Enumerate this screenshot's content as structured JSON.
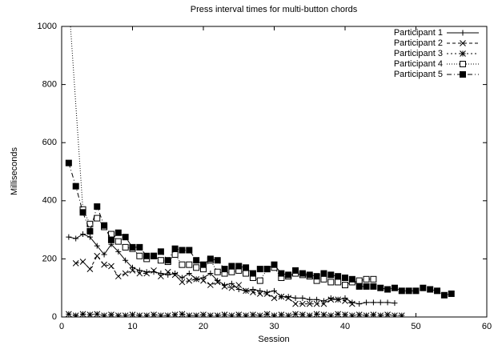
{
  "chart_data": {
    "type": "line",
    "title": "Press interval times for multi-button chords",
    "xlabel": "Session",
    "ylabel": "Milliseconds",
    "xlim": [
      0,
      60
    ],
    "xticks": [
      0,
      10,
      20,
      30,
      40,
      50,
      60
    ],
    "ylim": [
      0,
      1000
    ],
    "yticks": [
      0,
      200,
      400,
      600,
      800,
      1000
    ],
    "legend": "top-right",
    "series": [
      {
        "name": "Participant 1",
        "color": "#000000",
        "marker": "plus",
        "dash": "solid",
        "x": [
          1,
          2,
          3,
          4,
          5,
          6,
          7,
          8,
          9,
          10,
          11,
          12,
          13,
          14,
          15,
          16,
          17,
          18,
          19,
          20,
          21,
          22,
          23,
          24,
          25,
          26,
          27,
          28,
          29,
          30,
          31,
          32,
          33,
          34,
          35,
          36,
          37,
          38,
          39,
          40,
          41,
          42,
          43,
          44,
          45,
          46,
          47
        ],
        "values": [
          275,
          270,
          285,
          275,
          245,
          215,
          250,
          225,
          195,
          170,
          160,
          155,
          155,
          150,
          145,
          150,
          135,
          150,
          130,
          135,
          150,
          125,
          110,
          115,
          95,
          90,
          95,
          90,
          85,
          90,
          70,
          70,
          65,
          65,
          60,
          60,
          55,
          65,
          60,
          65,
          50,
          45,
          50,
          50,
          50,
          50,
          48
        ]
      },
      {
        "name": "Participant 2",
        "color": "#000000",
        "marker": "cross",
        "dash": "dashed",
        "x": [
          2,
          3,
          4,
          5,
          6,
          7,
          8,
          9,
          10,
          11,
          12,
          13,
          14,
          15,
          16,
          17,
          18,
          19,
          20,
          21,
          22,
          23,
          24,
          25,
          26,
          27,
          28,
          29,
          30,
          31,
          32,
          33,
          34,
          35,
          36,
          37,
          38,
          39,
          40,
          41
        ],
        "values": [
          185,
          190,
          165,
          210,
          180,
          175,
          140,
          150,
          160,
          150,
          150,
          160,
          140,
          155,
          145,
          120,
          125,
          130,
          125,
          110,
          120,
          105,
          100,
          110,
          90,
          85,
          80,
          80,
          65,
          70,
          65,
          45,
          45,
          45,
          45,
          45,
          60,
          60,
          55,
          45
        ]
      },
      {
        "name": "Participant 3",
        "color": "#000000",
        "marker": "star",
        "dash": "dotted",
        "x": [
          1,
          2,
          3,
          4,
          5,
          6,
          7,
          8,
          9,
          10,
          11,
          12,
          13,
          14,
          15,
          16,
          17,
          18,
          19,
          20,
          21,
          22,
          23,
          24,
          25,
          26,
          27,
          28,
          29,
          30,
          31,
          32,
          33,
          34,
          35,
          36,
          37,
          38,
          39,
          40,
          41,
          42,
          43,
          44,
          45,
          46,
          47,
          48
        ],
        "values": [
          10,
          5,
          10,
          8,
          10,
          5,
          8,
          5,
          5,
          8,
          5,
          5,
          8,
          5,
          5,
          8,
          10,
          5,
          5,
          8,
          5,
          5,
          8,
          5,
          8,
          5,
          8,
          5,
          10,
          5,
          8,
          5,
          10,
          8,
          5,
          10,
          8,
          5,
          10,
          8,
          5,
          8,
          5,
          8,
          5,
          8,
          5,
          5
        ]
      },
      {
        "name": "Participant 4",
        "color": "#000000",
        "marker": "square",
        "dash": "fine-dotted",
        "x": [
          1,
          3,
          4,
          5,
          6,
          7,
          8,
          9,
          10,
          11,
          12,
          13,
          14,
          15,
          16,
          17,
          18,
          19,
          20,
          21,
          22,
          23,
          24,
          25,
          26,
          27,
          28,
          29,
          30,
          31,
          32,
          33,
          34,
          35,
          36,
          37,
          38,
          39,
          40,
          41,
          42,
          43,
          44
        ],
        "values": [
          1090,
          370,
          320,
          340,
          310,
          285,
          260,
          240,
          235,
          210,
          200,
          210,
          195,
          190,
          215,
          180,
          180,
          170,
          165,
          195,
          155,
          150,
          155,
          160,
          150,
          135,
          125,
          165,
          170,
          135,
          140,
          150,
          145,
          140,
          125,
          130,
          120,
          120,
          110,
          120,
          125,
          130,
          130
        ]
      },
      {
        "name": "Participant 5",
        "color": "#000000",
        "marker": "filled-square",
        "dash": "dash-dot",
        "x": [
          1,
          2,
          3,
          4,
          5,
          6,
          7,
          8,
          9,
          10,
          11,
          12,
          13,
          14,
          15,
          16,
          17,
          18,
          19,
          20,
          21,
          22,
          23,
          24,
          25,
          26,
          27,
          28,
          29,
          30,
          31,
          32,
          33,
          34,
          35,
          36,
          37,
          38,
          39,
          40,
          41,
          42,
          43,
          44,
          45,
          46,
          47,
          48,
          49,
          50,
          51,
          52,
          53,
          54,
          55
        ],
        "values": [
          530,
          450,
          360,
          295,
          380,
          315,
          265,
          290,
          275,
          240,
          240,
          210,
          210,
          225,
          195,
          235,
          230,
          230,
          195,
          180,
          200,
          195,
          165,
          175,
          175,
          170,
          150,
          165,
          165,
          180,
          150,
          145,
          160,
          150,
          145,
          140,
          150,
          145,
          140,
          135,
          130,
          105,
          105,
          105,
          100,
          95,
          100,
          90,
          90,
          90,
          100,
          95,
          90,
          75,
          80
        ]
      }
    ]
  }
}
